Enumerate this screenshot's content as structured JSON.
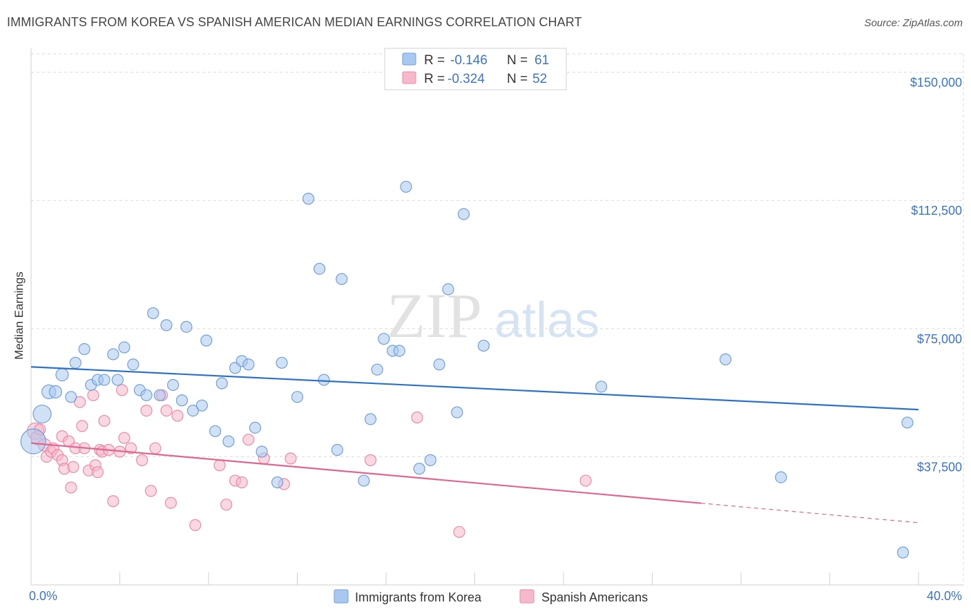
{
  "title": "IMMIGRANTS FROM KOREA VS SPANISH AMERICAN MEDIAN EARNINGS CORRELATION CHART",
  "source": "Source: ZipAtlas.com",
  "watermark": {
    "zip": "ZIP",
    "atlas": "atlas"
  },
  "colors": {
    "blue_fill": "#a9c8ef",
    "blue_stroke": "#6f9fd8",
    "blue_line": "#2a72c9",
    "pink_fill": "#f6b8cb",
    "pink_stroke": "#e88aa8",
    "pink_line": "#e0648f",
    "axis_label": "#3a74c4",
    "grid": "#d9d9d9"
  },
  "legend_top": {
    "rows": [
      {
        "r_label": "R =",
        "r_value": "-0.146",
        "n_label": "N =",
        "n_value": "61"
      },
      {
        "r_label": "R =",
        "r_value": "-0.324",
        "n_label": "N =",
        "n_value": "52"
      }
    ]
  },
  "legend_bottom": [
    "Immigrants from Korea",
    "Spanish Americans"
  ],
  "chart_data": {
    "type": "scatter",
    "xlabel": "",
    "ylabel": "Median Earnings",
    "xlim": [
      0,
      40
    ],
    "ylim": [
      0,
      157000
    ],
    "x_tick_labels": [
      "0.0%",
      "40.0%"
    ],
    "y_ticks": [
      37500,
      75000,
      112500,
      150000
    ],
    "y_tick_labels": [
      "$37,500",
      "$75,000",
      "$112,500",
      "$150,000"
    ],
    "grid": true,
    "legend_position": "top-center",
    "series": [
      {
        "name": "Immigrants from Korea",
        "r": -0.146,
        "n": 61,
        "trend": {
          "x": [
            0,
            40
          ],
          "y": [
            63800,
            51300
          ],
          "dashed_from": null
        },
        "points": [
          [
            0.1,
            42000,
            18
          ],
          [
            0.5,
            50000,
            13
          ],
          [
            0.8,
            56500,
            10
          ],
          [
            1.1,
            56500,
            9
          ],
          [
            1.4,
            61500,
            9
          ],
          [
            1.8,
            55000,
            8
          ],
          [
            2.0,
            65000,
            8
          ],
          [
            2.4,
            69000,
            8
          ],
          [
            2.7,
            58500,
            8
          ],
          [
            3.0,
            60000,
            8
          ],
          [
            3.3,
            60000,
            8
          ],
          [
            3.7,
            67500,
            8
          ],
          [
            3.9,
            60000,
            8
          ],
          [
            4.2,
            69500,
            8
          ],
          [
            4.6,
            64500,
            8
          ],
          [
            4.9,
            57000,
            8
          ],
          [
            5.2,
            55500,
            8
          ],
          [
            5.5,
            79500,
            8
          ],
          [
            5.8,
            55500,
            8
          ],
          [
            6.1,
            76000,
            8
          ],
          [
            6.4,
            58500,
            8
          ],
          [
            6.8,
            54000,
            8
          ],
          [
            7.0,
            75500,
            8
          ],
          [
            7.3,
            51000,
            8
          ],
          [
            7.7,
            52500,
            8
          ],
          [
            7.9,
            71500,
            8
          ],
          [
            8.3,
            45000,
            8
          ],
          [
            8.6,
            59000,
            8
          ],
          [
            8.9,
            42000,
            8
          ],
          [
            9.2,
            63500,
            8
          ],
          [
            9.5,
            65500,
            8
          ],
          [
            9.8,
            64500,
            8
          ],
          [
            10.1,
            46000,
            8
          ],
          [
            10.4,
            39000,
            8
          ],
          [
            11.1,
            30000,
            8
          ],
          [
            11.3,
            65000,
            8
          ],
          [
            12.0,
            55000,
            8
          ],
          [
            12.5,
            113000,
            8
          ],
          [
            13.0,
            92500,
            8
          ],
          [
            13.2,
            60000,
            8
          ],
          [
            13.8,
            39500,
            8
          ],
          [
            14.0,
            89500,
            8
          ],
          [
            15.0,
            30500,
            8
          ],
          [
            15.3,
            48500,
            8
          ],
          [
            15.6,
            63000,
            8
          ],
          [
            15.9,
            72000,
            8
          ],
          [
            16.3,
            68500,
            8
          ],
          [
            16.6,
            68500,
            8
          ],
          [
            16.9,
            116500,
            8
          ],
          [
            17.5,
            34000,
            8
          ],
          [
            18.0,
            36500,
            8
          ],
          [
            18.4,
            64500,
            8
          ],
          [
            18.8,
            86500,
            8
          ],
          [
            19.2,
            50500,
            8
          ],
          [
            19.5,
            108500,
            8
          ],
          [
            20.4,
            70000,
            8
          ],
          [
            25.7,
            58000,
            8
          ],
          [
            31.3,
            66000,
            8
          ],
          [
            33.8,
            31500,
            8
          ],
          [
            39.3,
            9500,
            8
          ],
          [
            39.5,
            47500,
            8
          ]
        ]
      },
      {
        "name": "Spanish Americans",
        "r": -0.324,
        "n": 52,
        "trend": {
          "x": [
            0,
            40
          ],
          "y": [
            41500,
            18200
          ],
          "dashed_from": 30.2
        },
        "points": [
          [
            0.2,
            45000,
            12
          ],
          [
            0.3,
            43000,
            10
          ],
          [
            0.6,
            41000,
            9
          ],
          [
            0.7,
            37500,
            8
          ],
          [
            0.9,
            39000,
            8
          ],
          [
            1.0,
            40000,
            8
          ],
          [
            1.2,
            38000,
            8
          ],
          [
            1.4,
            36500,
            8
          ],
          [
            1.4,
            43500,
            8
          ],
          [
            1.5,
            34000,
            8
          ],
          [
            1.7,
            42000,
            8
          ],
          [
            1.8,
            28500,
            8
          ],
          [
            1.9,
            34500,
            8
          ],
          [
            2.0,
            40000,
            8
          ],
          [
            2.2,
            53500,
            8
          ],
          [
            2.3,
            46500,
            8
          ],
          [
            2.4,
            40000,
            8
          ],
          [
            2.6,
            33500,
            8
          ],
          [
            2.8,
            55500,
            8
          ],
          [
            2.9,
            35000,
            8
          ],
          [
            3.0,
            33000,
            8
          ],
          [
            3.1,
            39500,
            8
          ],
          [
            3.2,
            39000,
            8
          ],
          [
            3.3,
            48000,
            8
          ],
          [
            3.5,
            39500,
            8
          ],
          [
            3.7,
            24500,
            8
          ],
          [
            4.0,
            39000,
            8
          ],
          [
            4.1,
            57000,
            8
          ],
          [
            4.2,
            43000,
            8
          ],
          [
            4.5,
            40000,
            8
          ],
          [
            5.0,
            36500,
            8
          ],
          [
            5.2,
            51000,
            8
          ],
          [
            5.4,
            27500,
            8
          ],
          [
            5.6,
            40000,
            8
          ],
          [
            5.9,
            55500,
            8
          ],
          [
            6.1,
            51000,
            8
          ],
          [
            6.3,
            24000,
            8
          ],
          [
            6.6,
            49500,
            8
          ],
          [
            7.4,
            17500,
            8
          ],
          [
            8.5,
            35000,
            8
          ],
          [
            8.8,
            23500,
            8
          ],
          [
            9.2,
            30500,
            8
          ],
          [
            9.5,
            30000,
            8
          ],
          [
            9.8,
            42500,
            8
          ],
          [
            10.5,
            37000,
            8
          ],
          [
            11.4,
            29500,
            8
          ],
          [
            11.7,
            37000,
            8
          ],
          [
            15.3,
            36500,
            8
          ],
          [
            17.4,
            49000,
            8
          ],
          [
            19.3,
            15500,
            8
          ],
          [
            25.0,
            30500,
            8
          ],
          [
            0.4,
            45500,
            8
          ]
        ]
      }
    ]
  }
}
